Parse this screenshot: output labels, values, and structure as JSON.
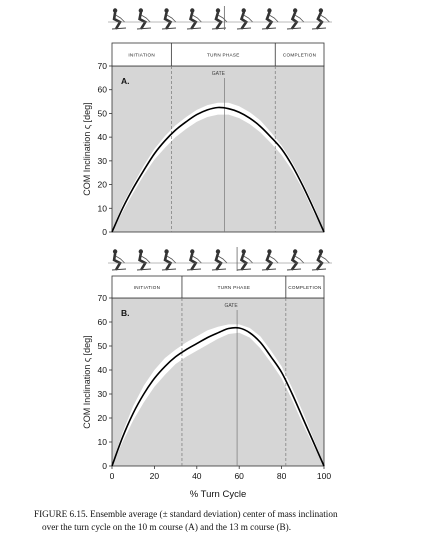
{
  "chart_data": [
    {
      "type": "line",
      "panel_label": "A.",
      "ylabel": "COM Inclination ς [deg]",
      "xlabel": "",
      "ylim": [
        0,
        70
      ],
      "xlim": [
        0,
        100
      ],
      "yticks": [
        0,
        10,
        20,
        30,
        40,
        50,
        60,
        70
      ],
      "xticks": [],
      "phases": [
        {
          "label": "INITIATION",
          "start": 0,
          "end": 28
        },
        {
          "label": "TURN PHASE",
          "start": 28,
          "end": 77
        },
        {
          "label": "COMPLETION",
          "start": 77,
          "end": 100
        }
      ],
      "gate": {
        "label": "GATE",
        "x": 53
      },
      "series": [
        {
          "x": [
            0,
            5,
            10,
            15,
            20,
            25,
            30,
            35,
            40,
            45,
            50,
            55,
            60,
            65,
            70,
            75,
            80,
            85,
            90,
            95,
            100
          ],
          "mean": [
            0,
            10,
            18.5,
            26,
            33,
            38.5,
            43,
            46.5,
            49.5,
            51.5,
            52.5,
            52,
            50.5,
            48,
            44.5,
            40,
            35,
            28,
            19.5,
            10,
            0
          ],
          "sd_upper": [
            0.5,
            11.5,
            20,
            28,
            35,
            40.5,
            45,
            48.5,
            51.5,
            53.5,
            54.5,
            54.5,
            53,
            50.5,
            47,
            42,
            36.5,
            29.5,
            21,
            11.5,
            0.5
          ],
          "sd_lower": [
            0,
            8.5,
            16.5,
            24,
            30.5,
            35.5,
            40,
            43.5,
            46.5,
            48.5,
            49.5,
            49.5,
            48,
            45.5,
            42,
            37.5,
            32.5,
            26,
            18,
            8.5,
            0
          ]
        }
      ]
    },
    {
      "type": "line",
      "panel_label": "B.",
      "ylabel": "COM Inclination ς [deg]",
      "xlabel": "% Turn Cycle",
      "ylim": [
        0,
        70
      ],
      "xlim": [
        0,
        100
      ],
      "yticks": [
        0,
        10,
        20,
        30,
        40,
        50,
        60,
        70
      ],
      "xticks": [
        0,
        20,
        40,
        60,
        80,
        100
      ],
      "phases": [
        {
          "label": "INITIATION",
          "start": 0,
          "end": 33
        },
        {
          "label": "TURN PHASE",
          "start": 33,
          "end": 82
        },
        {
          "label": "COMPLETION",
          "start": 82,
          "end": 100
        }
      ],
      "gate": {
        "label": "GATE",
        "x": 59
      },
      "series": [
        {
          "x": [
            0,
            5,
            10,
            15,
            20,
            25,
            30,
            35,
            40,
            45,
            50,
            55,
            60,
            65,
            70,
            75,
            80,
            85,
            90,
            95,
            100
          ],
          "mean": [
            0,
            12,
            22,
            30,
            36.5,
            41.5,
            45.5,
            48.5,
            51,
            53.5,
            55.5,
            57.3,
            57.5,
            55.5,
            51.5,
            45.5,
            39,
            30,
            20,
            10,
            0
          ],
          "sd_upper": [
            0.5,
            14,
            25,
            33.5,
            40,
            45,
            48.5,
            51.5,
            54,
            56.5,
            58,
            59,
            59,
            57.5,
            54,
            48,
            41.5,
            32.5,
            22.5,
            11.5,
            0.5
          ],
          "sd_lower": [
            0,
            10,
            19,
            26.5,
            33,
            38,
            42.5,
            45.5,
            48,
            50.5,
            53,
            55,
            55.5,
            53.5,
            49,
            43,
            36.5,
            27.5,
            17.5,
            8.5,
            0
          ]
        }
      ]
    }
  ],
  "caption": {
    "line1": "FIGURE 6.15.  Ensemble average (± standard deviation) center of mass inclination",
    "line2": "over the turn cycle on the 10 m course (A) and the 13 m course (B)."
  }
}
